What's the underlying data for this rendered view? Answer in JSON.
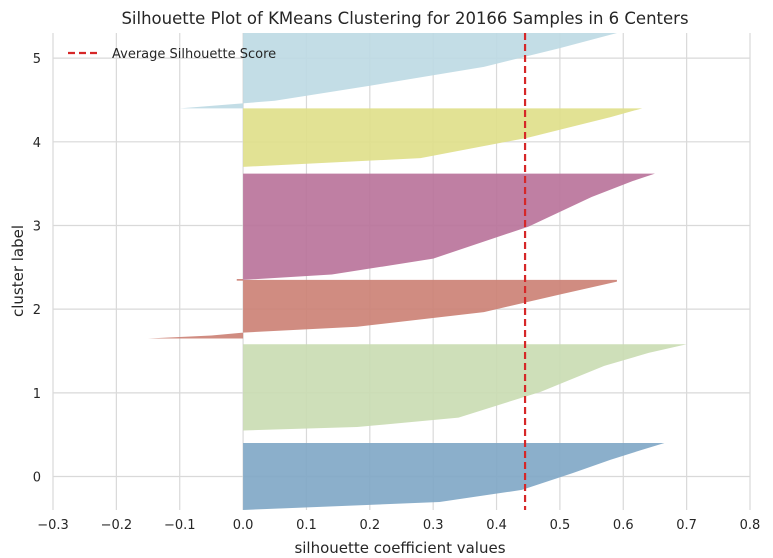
{
  "chart_data": {
    "type": "area",
    "title": "Silhouette Plot of KMeans Clustering for 20166 Samples in 6 Centers",
    "xlabel": "silhouette coefficient values",
    "ylabel": "cluster label",
    "xlim": [
      -0.3,
      0.8
    ],
    "ylim": [
      -0.4,
      5.3
    ],
    "grid": true,
    "plot_background": "#ffffff",
    "grid_color": "#d9d9d9",
    "x_ticks": [
      -0.3,
      -0.2,
      -0.1,
      0.0,
      0.1,
      0.2,
      0.3,
      0.4,
      0.5,
      0.6,
      0.7,
      0.8
    ],
    "x_tick_labels": [
      "−0.3",
      "−0.2",
      "−0.1",
      "0.0",
      "0.1",
      "0.2",
      "0.3",
      "0.4",
      "0.5",
      "0.6",
      "0.7",
      "0.8"
    ],
    "y_ticks": [
      0,
      1,
      2,
      3,
      4,
      5
    ],
    "y_tick_labels": [
      "0",
      "1",
      "2",
      "3",
      "4",
      "5"
    ],
    "average_silhouette_score": 0.445,
    "average_line_color": "#d62728",
    "legend": {
      "position": "top-left",
      "entries": [
        {
          "label": "Average Silhouette Score",
          "style": "dashed",
          "color": "#d62728"
        }
      ]
    },
    "series": [
      {
        "cluster": "0",
        "color": "#7ea6c5",
        "y_bottom": -0.4,
        "y_top": 0.4,
        "profile": [
          [
            0.0,
            0.0
          ],
          [
            0.12,
            0.31
          ],
          [
            0.3,
            0.44
          ],
          [
            0.55,
            0.52
          ],
          [
            0.75,
            0.58
          ],
          [
            0.9,
            0.63
          ],
          [
            1.0,
            0.665
          ]
        ]
      },
      {
        "cluster": "1",
        "color": "#c9dbb1",
        "y_bottom": 0.55,
        "y_top": 1.58,
        "profile": [
          [
            0.0,
            0.0
          ],
          [
            0.04,
            0.18
          ],
          [
            0.15,
            0.34
          ],
          [
            0.45,
            0.47
          ],
          [
            0.75,
            0.57
          ],
          [
            0.9,
            0.64
          ],
          [
            1.0,
            0.7
          ]
        ]
      },
      {
        "cluster": "2",
        "color": "#cb7f73",
        "y_bottom": 1.65,
        "y_top": 2.35,
        "profile": [
          [
            0.0,
            -0.15
          ],
          [
            0.05,
            -0.05
          ],
          [
            0.1,
            0.0
          ],
          [
            0.2,
            0.18
          ],
          [
            0.45,
            0.38
          ],
          [
            0.75,
            0.5
          ],
          [
            0.97,
            0.59
          ],
          [
            1.0,
            0.59
          ]
        ],
        "tail_top_x": -0.01
      },
      {
        "cluster": "3",
        "color": "#b87199",
        "y_bottom": 2.35,
        "y_top": 3.62,
        "profile": [
          [
            0.0,
            0.0
          ],
          [
            0.05,
            0.14
          ],
          [
            0.2,
            0.3
          ],
          [
            0.5,
            0.45
          ],
          [
            0.78,
            0.55
          ],
          [
            0.93,
            0.615
          ],
          [
            1.0,
            0.65
          ]
        ]
      },
      {
        "cluster": "4",
        "color": "#dfdf88",
        "y_bottom": 3.7,
        "y_top": 4.4,
        "profile": [
          [
            0.0,
            0.0
          ],
          [
            0.15,
            0.28
          ],
          [
            0.5,
            0.45
          ],
          [
            0.85,
            0.58
          ],
          [
            1.0,
            0.63
          ]
        ]
      },
      {
        "cluster": "5",
        "color": "#bcd9e3",
        "y_bottom": 4.4,
        "y_top": 5.3,
        "profile": [
          [
            0.0,
            -0.1
          ],
          [
            0.1,
            0.05
          ],
          [
            0.3,
            0.2
          ],
          [
            0.55,
            0.38
          ],
          [
            0.8,
            0.5
          ],
          [
            1.0,
            0.59
          ]
        ]
      }
    ]
  }
}
